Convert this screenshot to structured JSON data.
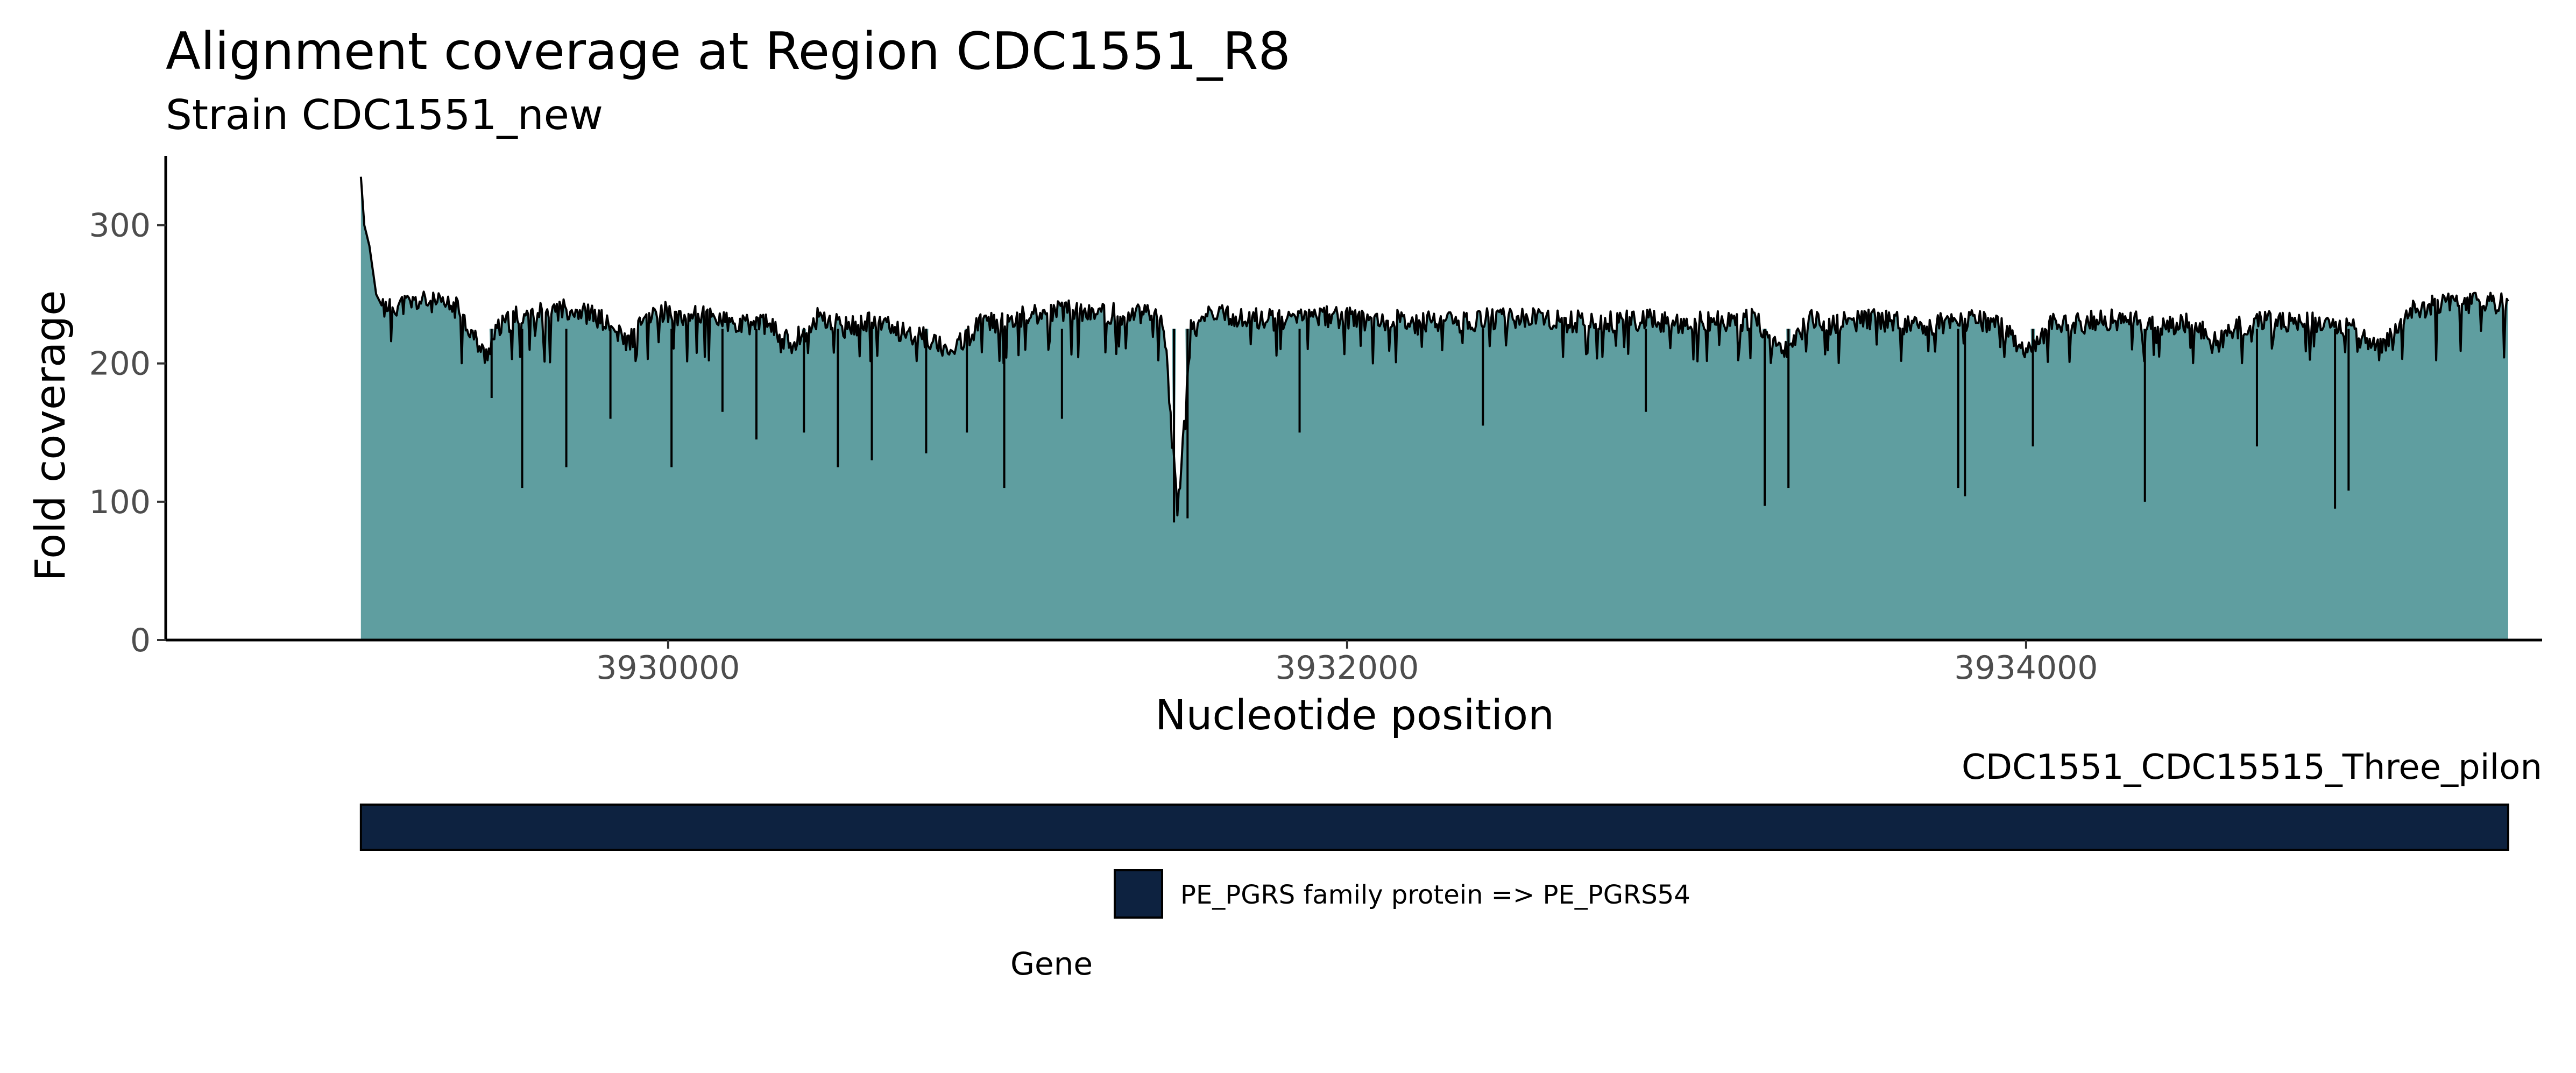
{
  "chart_data": {
    "type": "area",
    "title": "Alignment coverage at Region CDC1551_R8",
    "subtitle": "Strain CDC1551_new",
    "xlabel": "Nucleotide position",
    "ylabel": "Fold coverage",
    "xlim": [
      3928520,
      3935520
    ],
    "ylim": [
      0,
      350
    ],
    "x_ticks": [
      3930000,
      3932000,
      3934000
    ],
    "x_tick_labels": [
      "3930000",
      "3932000",
      "3934000"
    ],
    "y_ticks": [
      0,
      100,
      200,
      300
    ],
    "y_tick_labels": [
      "0",
      "100",
      "200",
      "300"
    ],
    "grid": false,
    "fill_color": "#5f9ea0",
    "line_color": "#000000",
    "coverage": {
      "x": [
        3929095,
        3929105,
        3929120,
        3929140,
        3929160,
        3929200,
        3929280,
        3929380,
        3929460,
        3929500,
        3929560,
        3929640,
        3929720,
        3929800,
        3929880,
        3929960,
        3930040,
        3930120,
        3930200,
        3930280,
        3930360,
        3930440,
        3930520,
        3930600,
        3930680,
        3930760,
        3930840,
        3930920,
        3931000,
        3931080,
        3931160,
        3931240,
        3931320,
        3931400,
        3931460,
        3931500,
        3931540,
        3931600,
        3931680,
        3931760,
        3931840,
        3931920,
        3932000,
        3932080,
        3932160,
        3932240,
        3932320,
        3932400,
        3932480,
        3932560,
        3932640,
        3932720,
        3932800,
        3932880,
        3932960,
        3933040,
        3933120,
        3933200,
        3933280,
        3933360,
        3933440,
        3933520,
        3933600,
        3933680,
        3933760,
        3933840,
        3933920,
        3934000,
        3934080,
        3934160,
        3934240,
        3934320,
        3934400,
        3934480,
        3934560,
        3934640,
        3934720,
        3934800,
        3934880,
        3934960,
        3935040,
        3935120,
        3935200,
        3935280,
        3935360,
        3935420
      ],
      "y": [
        335,
        300,
        285,
        250,
        240,
        242,
        245,
        240,
        205,
        225,
        235,
        238,
        240,
        232,
        215,
        238,
        235,
        236,
        226,
        230,
        214,
        232,
        226,
        230,
        224,
        218,
        210,
        228,
        232,
        235,
        238,
        237,
        236,
        235,
        232,
        90,
        225,
        235,
        233,
        232,
        231,
        234,
        233,
        231,
        232,
        230,
        229,
        232,
        233,
        232,
        230,
        231,
        230,
        232,
        229,
        231,
        230,
        232,
        205,
        231,
        228,
        232,
        230,
        227,
        230,
        232,
        229,
        205,
        230,
        229,
        232,
        230,
        228,
        230,
        215,
        228,
        232,
        230,
        229,
        226,
        210,
        238,
        242,
        244,
        243,
        245
      ]
    },
    "noise_floor": 200,
    "dips": [
      {
        "x": 3929480,
        "y": 175
      },
      {
        "x": 3929570,
        "y": 110
      },
      {
        "x": 3929700,
        "y": 125
      },
      {
        "x": 3929830,
        "y": 160
      },
      {
        "x": 3930010,
        "y": 125
      },
      {
        "x": 3930160,
        "y": 165
      },
      {
        "x": 3930260,
        "y": 145
      },
      {
        "x": 3930400,
        "y": 150
      },
      {
        "x": 3930500,
        "y": 125
      },
      {
        "x": 3930600,
        "y": 130
      },
      {
        "x": 3930760,
        "y": 135
      },
      {
        "x": 3930880,
        "y": 150
      },
      {
        "x": 3930990,
        "y": 110
      },
      {
        "x": 3931160,
        "y": 160
      },
      {
        "x": 3931490,
        "y": 85
      },
      {
        "x": 3931530,
        "y": 88
      },
      {
        "x": 3931860,
        "y": 150
      },
      {
        "x": 3932400,
        "y": 155
      },
      {
        "x": 3932880,
        "y": 165
      },
      {
        "x": 3933230,
        "y": 97
      },
      {
        "x": 3933300,
        "y": 110
      },
      {
        "x": 3933800,
        "y": 110
      },
      {
        "x": 3933820,
        "y": 104
      },
      {
        "x": 3934020,
        "y": 140
      },
      {
        "x": 3934350,
        "y": 100
      },
      {
        "x": 3934680,
        "y": 140
      },
      {
        "x": 3934910,
        "y": 95
      },
      {
        "x": 3934950,
        "y": 108
      }
    ],
    "annotation_track": {
      "label": "CDC1551_CDC15515_Three_pilon",
      "features": [
        {
          "start": 3929095,
          "end": 3935420,
          "color": "#0d2240",
          "category": "PE_PGRS family protein => PE_PGRS54"
        }
      ]
    },
    "legend": {
      "title": "Gene",
      "position": "bottom",
      "entries": [
        {
          "label": "PE_PGRS family protein => PE_PGRS54",
          "color": "#0d2240"
        }
      ]
    }
  }
}
